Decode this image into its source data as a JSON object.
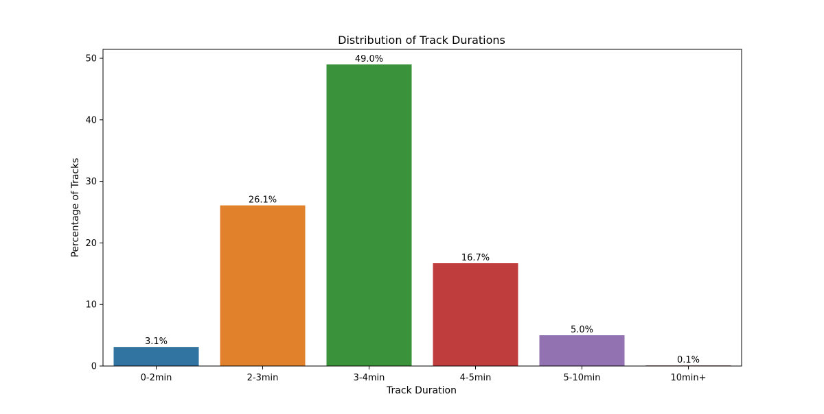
{
  "chart_data": {
    "type": "bar",
    "title": "Distribution of Track Durations",
    "xlabel": "Track Duration",
    "ylabel": "Percentage of Tracks",
    "categories": [
      "0-2min",
      "2-3min",
      "3-4min",
      "4-5min",
      "5-10min",
      "10min+"
    ],
    "values": [
      3.1,
      26.1,
      49.0,
      16.7,
      5.0,
      0.1
    ],
    "data_labels": [
      "3.1%",
      "26.1%",
      "49.0%",
      "16.7%",
      "5.0%",
      "0.1%"
    ],
    "colors": [
      "#3274a1",
      "#e1812c",
      "#3a923a",
      "#c03d3e",
      "#9372b2",
      "#845b53"
    ],
    "ylim": [
      0,
      51.45
    ],
    "yticks": [
      0,
      10,
      20,
      30,
      40,
      50
    ],
    "grid": false,
    "legend": "none"
  }
}
